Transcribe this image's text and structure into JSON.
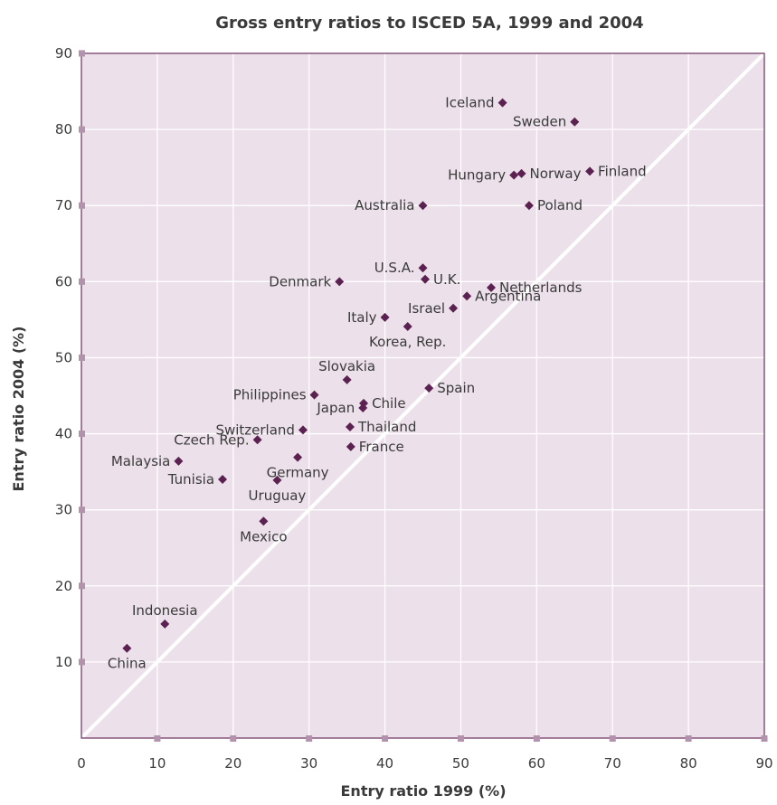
{
  "colors": {
    "plot_background": "#ece1ea",
    "plot_border": "#6b2f5e",
    "grid": "#ffffff",
    "marker": "#5b2150",
    "tick_mark": "#b292ad",
    "text": "#3a3a3a",
    "diagonal": "#ffffff"
  },
  "chart_data": {
    "type": "scatter",
    "title": "Gross entry ratios to ISCED 5A, 1999 and 2004",
    "xlabel": "Entry ratio 1999 (%)",
    "ylabel": "Entry ratio 2004 (%)",
    "xlim": [
      0,
      90
    ],
    "ylim": [
      0,
      90
    ],
    "x_ticks": [
      0,
      10,
      20,
      30,
      40,
      50,
      60,
      70,
      80,
      90
    ],
    "y_ticks": [
      10,
      20,
      30,
      40,
      50,
      60,
      70,
      80,
      90
    ],
    "grid": true,
    "reference_line": "y = x",
    "marker": "diamond",
    "points": [
      {
        "label": "Iceland",
        "x": 55.5,
        "y": 83.5,
        "anchor": "end"
      },
      {
        "label": "Sweden",
        "x": 65,
        "y": 81,
        "anchor": "end"
      },
      {
        "label": "Norway",
        "x": 58,
        "y": 74.2,
        "anchor": "start"
      },
      {
        "label": "Hungary",
        "x": 57,
        "y": 74,
        "anchor": "end"
      },
      {
        "label": "Finland",
        "x": 67,
        "y": 74.5,
        "anchor": "start"
      },
      {
        "label": "Australia",
        "x": 45,
        "y": 70,
        "anchor": "end"
      },
      {
        "label": "Poland",
        "x": 59,
        "y": 70,
        "anchor": "start"
      },
      {
        "label": "Denmark",
        "x": 34,
        "y": 60,
        "anchor": "end"
      },
      {
        "label": "U.S.A.",
        "x": 45,
        "y": 61.8,
        "anchor": "end"
      },
      {
        "label": "U.K.",
        "x": 45.3,
        "y": 60.3,
        "anchor": "start"
      },
      {
        "label": "Netherlands",
        "x": 54,
        "y": 59.2,
        "anchor": "start"
      },
      {
        "label": "Argentina",
        "x": 50.8,
        "y": 58.1,
        "anchor": "start"
      },
      {
        "label": "Israel",
        "x": 49,
        "y": 56.5,
        "anchor": "end"
      },
      {
        "label": "Italy",
        "x": 40,
        "y": 55.3,
        "anchor": "end"
      },
      {
        "label": "Korea, Rep.",
        "x": 43,
        "y": 54.1,
        "anchor": "middle"
      },
      {
        "label": "Slovakia",
        "x": 35,
        "y": 47.1,
        "anchor": "middle"
      },
      {
        "label": "Spain",
        "x": 45.8,
        "y": 46,
        "anchor": "start"
      },
      {
        "label": "Philippines",
        "x": 30.7,
        "y": 45.1,
        "anchor": "end"
      },
      {
        "label": "Chile",
        "x": 37.2,
        "y": 44,
        "anchor": "start"
      },
      {
        "label": "Japan",
        "x": 37.1,
        "y": 43.4,
        "anchor": "end"
      },
      {
        "label": "Switzerland",
        "x": 29.2,
        "y": 40.5,
        "anchor": "end"
      },
      {
        "label": "Thailand",
        "x": 35.4,
        "y": 40.9,
        "anchor": "start"
      },
      {
        "label": "Czech Rep.",
        "x": 23.2,
        "y": 39.2,
        "anchor": "end"
      },
      {
        "label": "France",
        "x": 35.5,
        "y": 38.3,
        "anchor": "start"
      },
      {
        "label": "Malaysia",
        "x": 12.8,
        "y": 36.4,
        "anchor": "end"
      },
      {
        "label": "Germany",
        "x": 28.5,
        "y": 36.9,
        "anchor": "middle"
      },
      {
        "label": "Tunisia",
        "x": 18.6,
        "y": 34,
        "anchor": "end"
      },
      {
        "label": "Uruguay",
        "x": 25.8,
        "y": 33.9,
        "anchor": "middle"
      },
      {
        "label": "Mexico",
        "x": 24,
        "y": 28.5,
        "anchor": "middle"
      },
      {
        "label": "Indonesia",
        "x": 11,
        "y": 15,
        "anchor": "middle"
      },
      {
        "label": "China",
        "x": 6,
        "y": 11.8,
        "anchor": "middle"
      }
    ]
  }
}
